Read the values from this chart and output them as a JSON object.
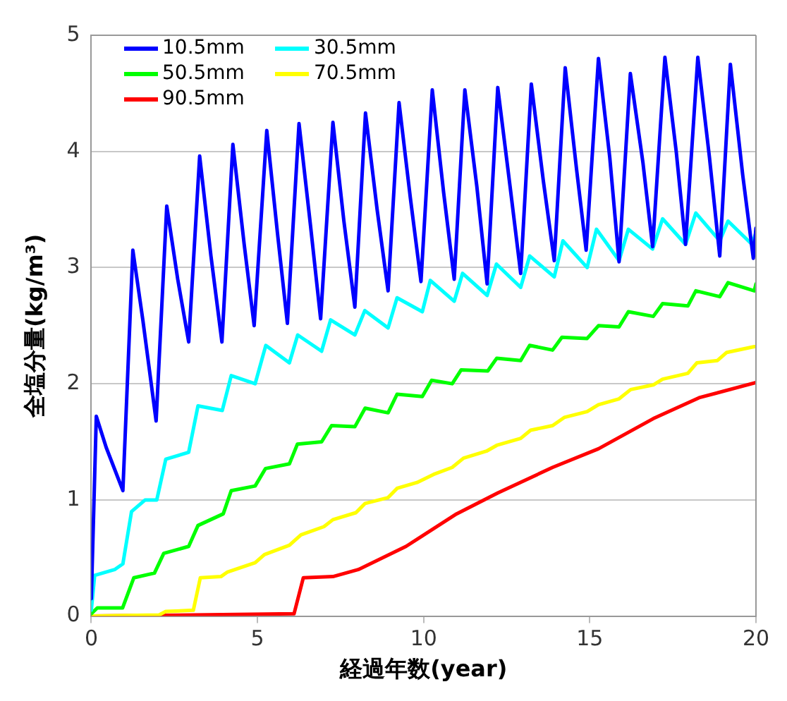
{
  "chart_data": {
    "type": "line",
    "xlabel": "経過年数(year)",
    "ylabel": "全塩分量(kg/m³)",
    "xlim": [
      0,
      20
    ],
    "xticks": [
      0,
      5,
      10,
      15,
      20
    ],
    "ylim": [
      0,
      5
    ],
    "yticks": [
      0,
      1,
      2,
      3,
      4,
      5
    ],
    "grid": "y",
    "legend": "top left",
    "marker": "none",
    "line_style": "solid",
    "series": [
      {
        "name": "10.5mm",
        "color": "#0000ff",
        "x": [
          0,
          0.15,
          0.45,
          0.95,
          1.25,
          1.55,
          1.95,
          2.27,
          2.6,
          2.93,
          3.26,
          3.6,
          3.93,
          4.26,
          4.6,
          4.9,
          5.28,
          5.6,
          5.9,
          6.25,
          6.6,
          6.9,
          7.27,
          7.6,
          7.93,
          8.25,
          8.6,
          8.93,
          9.26,
          9.6,
          9.92,
          10.26,
          10.6,
          10.92,
          11.24,
          11.6,
          11.91,
          12.23,
          12.6,
          12.92,
          13.24,
          13.6,
          13.93,
          14.26,
          14.6,
          14.89,
          15.26,
          15.6,
          15.88,
          16.22,
          16.6,
          16.89,
          17.26,
          17.6,
          17.88,
          18.25,
          18.6,
          18.91,
          19.23,
          19.6,
          19.92,
          20
        ],
        "values": [
          0.15,
          1.72,
          1.45,
          1.08,
          3.15,
          2.55,
          1.68,
          3.53,
          2.9,
          2.36,
          3.96,
          3.1,
          2.36,
          4.06,
          3.2,
          2.5,
          4.18,
          3.3,
          2.52,
          4.24,
          3.35,
          2.56,
          4.25,
          3.4,
          2.66,
          4.33,
          3.5,
          2.8,
          4.42,
          3.6,
          2.88,
          4.53,
          3.65,
          2.9,
          4.53,
          3.7,
          2.86,
          4.55,
          3.7,
          2.95,
          4.58,
          3.75,
          3.06,
          4.72,
          3.85,
          3.15,
          4.8,
          3.95,
          3.05,
          4.67,
          3.9,
          3.18,
          4.81,
          4.0,
          3.2,
          4.81,
          3.95,
          3.1,
          4.75,
          3.8,
          3.08,
          3.34
        ]
      },
      {
        "name": "30.5mm",
        "color": "#00ffff",
        "x": [
          0,
          0.1,
          0.7,
          0.95,
          1.21,
          1.62,
          1.97,
          2.24,
          2.93,
          3.21,
          3.94,
          4.21,
          4.93,
          5.25,
          5.96,
          6.21,
          6.93,
          7.2,
          7.93,
          8.23,
          8.93,
          9.2,
          9.96,
          10.2,
          10.92,
          11.17,
          11.91,
          12.19,
          12.92,
          13.19,
          13.93,
          14.19,
          14.92,
          15.2,
          15.88,
          16.16,
          16.89,
          17.19,
          17.88,
          18.19,
          18.91,
          19.16,
          19.88,
          20
        ],
        "values": [
          0.05,
          0.35,
          0.4,
          0.45,
          0.9,
          1.0,
          1.0,
          1.35,
          1.41,
          1.81,
          1.77,
          2.07,
          2.0,
          2.33,
          2.18,
          2.42,
          2.28,
          2.55,
          2.42,
          2.63,
          2.48,
          2.74,
          2.62,
          2.89,
          2.71,
          2.95,
          2.76,
          3.03,
          2.83,
          3.1,
          2.92,
          3.23,
          3.0,
          3.33,
          3.06,
          3.33,
          3.16,
          3.42,
          3.2,
          3.47,
          3.23,
          3.4,
          3.2,
          3.3
        ]
      },
      {
        "name": "50.5mm",
        "color": "#00ff00",
        "x": [
          0,
          0.18,
          0.94,
          1.28,
          1.9,
          2.18,
          2.93,
          3.21,
          3.97,
          4.21,
          4.93,
          5.24,
          5.96,
          6.2,
          6.93,
          7.23,
          7.93,
          8.24,
          8.93,
          9.2,
          9.96,
          10.24,
          10.86,
          11.13,
          11.93,
          12.2,
          12.92,
          13.19,
          13.88,
          14.16,
          14.92,
          15.26,
          15.88,
          16.16,
          16.91,
          17.19,
          17.95,
          18.19,
          18.91,
          19.16,
          19.95,
          20
        ],
        "values": [
          0.02,
          0.07,
          0.07,
          0.33,
          0.37,
          0.54,
          0.6,
          0.78,
          0.88,
          1.08,
          1.12,
          1.27,
          1.31,
          1.48,
          1.5,
          1.64,
          1.63,
          1.79,
          1.75,
          1.91,
          1.89,
          2.03,
          2.0,
          2.12,
          2.11,
          2.22,
          2.2,
          2.33,
          2.29,
          2.4,
          2.39,
          2.5,
          2.49,
          2.62,
          2.58,
          2.69,
          2.67,
          2.8,
          2.75,
          2.87,
          2.8,
          2.86
        ]
      },
      {
        "name": "70.5mm",
        "color": "#ffff00",
        "x": [
          0,
          2.04,
          2.24,
          3.07,
          3.28,
          3.9,
          4.1,
          4.93,
          5.21,
          5.96,
          6.31,
          7,
          7.27,
          7.96,
          8.24,
          8.93,
          9.2,
          9.8,
          10.3,
          10.86,
          11.2,
          11.89,
          12.2,
          12.92,
          13.22,
          13.88,
          14.23,
          14.92,
          15.26,
          15.88,
          16.23,
          16.91,
          17.19,
          17.95,
          18.22,
          18.84,
          19.12,
          19.95,
          20
        ],
        "values": [
          0,
          0.01,
          0.04,
          0.05,
          0.33,
          0.34,
          0.38,
          0.46,
          0.53,
          0.61,
          0.7,
          0.77,
          0.83,
          0.89,
          0.97,
          1.02,
          1.1,
          1.15,
          1.22,
          1.28,
          1.36,
          1.42,
          1.47,
          1.53,
          1.6,
          1.64,
          1.71,
          1.76,
          1.82,
          1.87,
          1.95,
          1.99,
          2.04,
          2.09,
          2.18,
          2.2,
          2.27,
          2.32,
          2.32
        ]
      },
      {
        "name": "90.5mm",
        "color": "#ff0000",
        "x": [
          0,
          6.1,
          6.38,
          7.27,
          8.03,
          9.47,
          10.99,
          12.23,
          13.88,
          15.26,
          16.91,
          18.29,
          20
        ],
        "values": [
          0,
          0.02,
          0.33,
          0.34,
          0.4,
          0.6,
          0.88,
          1.06,
          1.28,
          1.44,
          1.7,
          1.88,
          2.01
        ]
      }
    ]
  }
}
